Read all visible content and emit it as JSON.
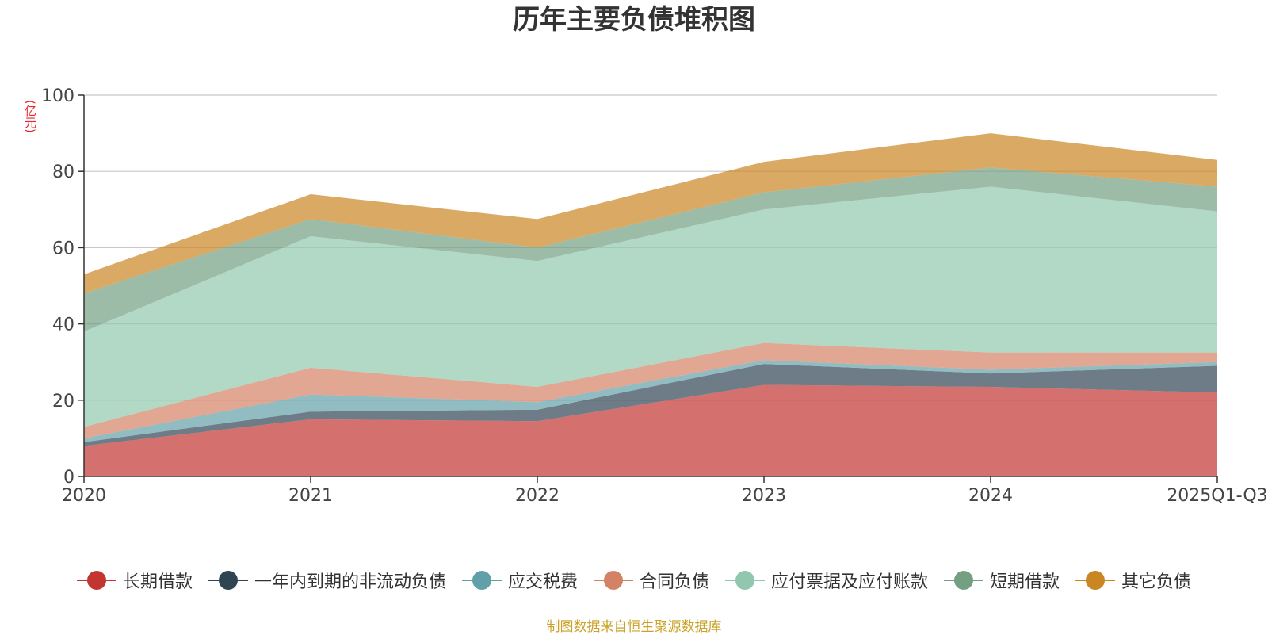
{
  "chart_data": {
    "type": "area",
    "stacked": true,
    "title": "历年主要负债堆积图",
    "ylabel": "(亿元)",
    "xlabel": "",
    "ylim": [
      0,
      100
    ],
    "yticks": [
      0,
      20,
      40,
      60,
      80,
      100
    ],
    "categories": [
      "2020",
      "2021",
      "2022",
      "2023",
      "2024",
      "2025Q1-Q3"
    ],
    "series": [
      {
        "name": "长期借款",
        "color": "#c23531",
        "values": [
          8.0,
          15.0,
          14.5,
          24.0,
          23.5,
          22.0
        ]
      },
      {
        "name": "一年内到期的非流动负债",
        "color": "#2f4554",
        "values": [
          1.0,
          2.0,
          3.0,
          5.5,
          3.5,
          7.0
        ]
      },
      {
        "name": "应交税费",
        "color": "#61a0a8",
        "values": [
          1.0,
          4.5,
          2.0,
          1.0,
          1.0,
          1.0
        ]
      },
      {
        "name": "合同负债",
        "color": "#d48265",
        "values": [
          3.0,
          7.0,
          4.0,
          4.5,
          4.5,
          2.5
        ]
      },
      {
        "name": "应付票据及应付账款",
        "color": "#91c7ae",
        "values": [
          25.0,
          34.5,
          33.0,
          35.0,
          43.5,
          37.0
        ]
      },
      {
        "name": "短期借款",
        "color": "#749f83",
        "values": [
          10.0,
          4.5,
          3.5,
          4.5,
          5.0,
          6.5
        ]
      },
      {
        "name": "其它负债",
        "color": "#ca8622",
        "values": [
          5.0,
          6.5,
          7.5,
          8.0,
          9.0,
          7.0
        ]
      }
    ]
  },
  "footer": {
    "source": "制图数据来自恒生聚源数据库",
    "source_color": "#c9a227"
  }
}
